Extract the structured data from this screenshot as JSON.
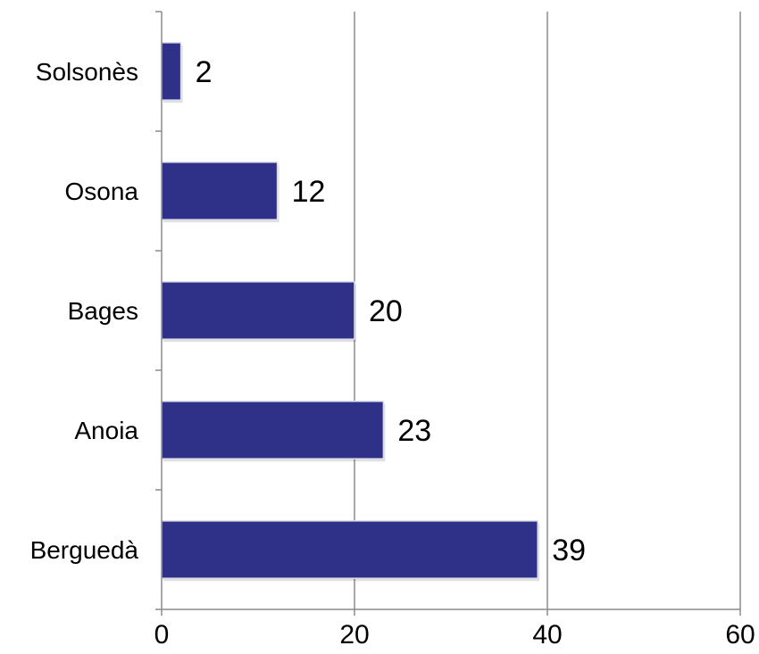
{
  "chart_data": {
    "type": "bar",
    "orientation": "horizontal",
    "categories": [
      "Solsonès",
      "Osona",
      "Bages",
      "Anoia",
      "Berguedà"
    ],
    "values": [
      2,
      12,
      20,
      23,
      39
    ],
    "data_labels": [
      "2",
      "12",
      "20",
      "23",
      "39"
    ],
    "title": "",
    "xlabel": "",
    "ylabel": "",
    "xlim": [
      0,
      60
    ],
    "x_ticks": [
      0,
      20,
      40,
      60
    ],
    "x_tick_labels": [
      "0",
      "20",
      "40",
      "60"
    ],
    "grid": "vertical",
    "legend": "none",
    "colors": {
      "bar": "#2e3187",
      "bar_edge": "#dcdcec",
      "grid": "#8c8c8c",
      "axis": "#8c8c8c",
      "text": "#000000"
    }
  }
}
